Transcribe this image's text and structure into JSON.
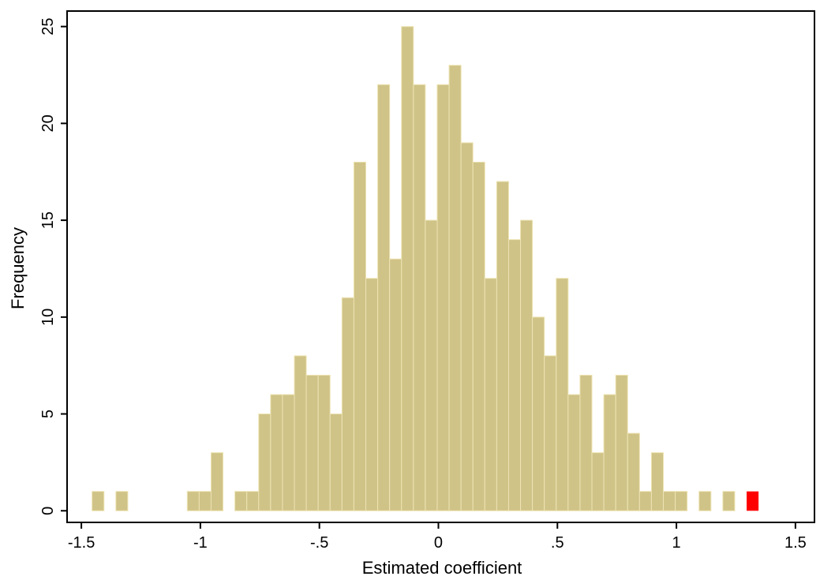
{
  "chart_data": {
    "type": "bar",
    "title": "",
    "xlabel": "Estimated coefficient",
    "ylabel": "Frequency",
    "xlim": [
      -1.56,
      1.58
    ],
    "ylim": [
      -0.6,
      25.8
    ],
    "bin_width": 0.05,
    "x_ticks": [
      {
        "value": -1.5,
        "label": "-1.5"
      },
      {
        "value": -1,
        "label": "-1"
      },
      {
        "value": -0.5,
        "label": "-.5"
      },
      {
        "value": 0,
        "label": "0"
      },
      {
        "value": 0.5,
        "label": ".5"
      },
      {
        "value": 1,
        "label": "1"
      },
      {
        "value": 1.5,
        "label": "1.5"
      }
    ],
    "y_ticks": [
      {
        "value": 0,
        "label": "0"
      },
      {
        "value": 5,
        "label": "5"
      },
      {
        "value": 10,
        "label": "10"
      },
      {
        "value": 15,
        "label": "15"
      },
      {
        "value": 20,
        "label": "20"
      },
      {
        "value": 25,
        "label": "25"
      }
    ],
    "grid": false,
    "colors": {
      "bar": "#cfc387",
      "bar_edge": "#eee4b4",
      "highlight": "#ff0000"
    },
    "bars": [
      {
        "x": -1.43,
        "value": 1
      },
      {
        "x": -1.33,
        "value": 1
      },
      {
        "x": -1.03,
        "value": 1
      },
      {
        "x": -0.98,
        "value": 1
      },
      {
        "x": -0.93,
        "value": 3
      },
      {
        "x": -0.83,
        "value": 1
      },
      {
        "x": -0.78,
        "value": 1
      },
      {
        "x": -0.73,
        "value": 5
      },
      {
        "x": -0.68,
        "value": 6
      },
      {
        "x": -0.63,
        "value": 6
      },
      {
        "x": -0.58,
        "value": 8
      },
      {
        "x": -0.53,
        "value": 7
      },
      {
        "x": -0.48,
        "value": 7
      },
      {
        "x": -0.43,
        "value": 5
      },
      {
        "x": -0.38,
        "value": 11
      },
      {
        "x": -0.33,
        "value": 18
      },
      {
        "x": -0.28,
        "value": 12
      },
      {
        "x": -0.23,
        "value": 22
      },
      {
        "x": -0.18,
        "value": 13
      },
      {
        "x": -0.13,
        "value": 25
      },
      {
        "x": -0.08,
        "value": 22
      },
      {
        "x": -0.03,
        "value": 15
      },
      {
        "x": 0.02,
        "value": 22
      },
      {
        "x": 0.07,
        "value": 23
      },
      {
        "x": 0.12,
        "value": 19
      },
      {
        "x": 0.17,
        "value": 18
      },
      {
        "x": 0.22,
        "value": 12
      },
      {
        "x": 0.27,
        "value": 17
      },
      {
        "x": 0.32,
        "value": 14
      },
      {
        "x": 0.37,
        "value": 15
      },
      {
        "x": 0.42,
        "value": 10
      },
      {
        "x": 0.47,
        "value": 8
      },
      {
        "x": 0.52,
        "value": 12
      },
      {
        "x": 0.57,
        "value": 6
      },
      {
        "x": 0.62,
        "value": 7
      },
      {
        "x": 0.67,
        "value": 3
      },
      {
        "x": 0.72,
        "value": 6
      },
      {
        "x": 0.77,
        "value": 7
      },
      {
        "x": 0.82,
        "value": 4
      },
      {
        "x": 0.87,
        "value": 1
      },
      {
        "x": 0.92,
        "value": 3
      },
      {
        "x": 0.97,
        "value": 1
      },
      {
        "x": 1.02,
        "value": 1
      },
      {
        "x": 1.12,
        "value": 1
      },
      {
        "x": 1.22,
        "value": 1
      }
    ],
    "highlight": {
      "x": 1.32,
      "value": 1
    }
  }
}
